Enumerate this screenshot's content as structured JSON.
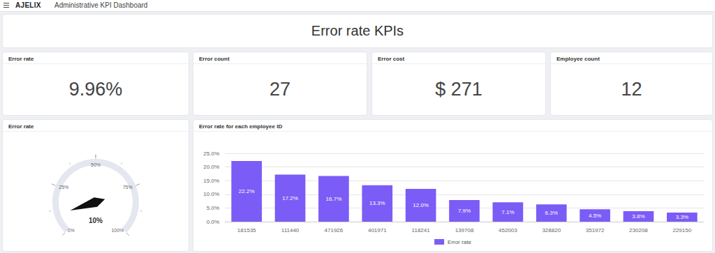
{
  "header": {
    "logo": "AJELIX",
    "app_title": "Administrative KPI Dashboard",
    "title": "Error rate KPIs"
  },
  "kpis": [
    {
      "title": "Error rate",
      "value": "9.96%"
    },
    {
      "title": "Error count",
      "value": "27"
    },
    {
      "title": "Error cost",
      "value": "$ 271"
    },
    {
      "title": "Employee count",
      "value": "12"
    }
  ],
  "chart_data": [
    {
      "type": "gauge",
      "title": "Error rate",
      "color": "#111111",
      "values": [
        9.96
      ],
      "value_labels": [
        "10%"
      ],
      "ylim": [
        0,
        100
      ],
      "yticks": [
        {
          "value": 0,
          "label": "0%"
        },
        {
          "value": 25,
          "label": "25%"
        },
        {
          "value": 50,
          "label": "50%"
        },
        {
          "value": 75,
          "label": "75%"
        },
        {
          "value": 100,
          "label": "100%"
        }
      ]
    },
    {
      "type": "bar",
      "title": "Error rate for each employee ID",
      "categories": [
        "181535",
        "111440",
        "471926",
        "401971",
        "118241",
        "139708",
        "452003",
        "328820",
        "351972",
        "230208",
        "229150"
      ],
      "series": [
        {
          "name": "Error rate",
          "color": "#7b5cf6",
          "values": [
            22.2,
            17.2,
            16.7,
            13.3,
            12.0,
            7.9,
            7.1,
            6.3,
            4.5,
            3.8,
            3.3
          ],
          "value_labels": [
            "22.2%",
            "17.2%",
            "16.7%",
            "13.3%",
            "12.0%",
            "7.9%",
            "7.1%",
            "6.3%",
            "4.5%",
            "3.8%",
            "3.3%"
          ]
        }
      ],
      "ylim": [
        0,
        25
      ],
      "yticks": [
        {
          "value": 0,
          "label": "0.0%"
        },
        {
          "value": 5,
          "label": "5.0%"
        },
        {
          "value": 10,
          "label": "10.0%"
        },
        {
          "value": 15,
          "label": "15.0%"
        },
        {
          "value": 20,
          "label": "20.0%"
        },
        {
          "value": 25,
          "label": "25.0%"
        }
      ],
      "grid": true,
      "legend": "bottom",
      "data_labels": true
    }
  ]
}
